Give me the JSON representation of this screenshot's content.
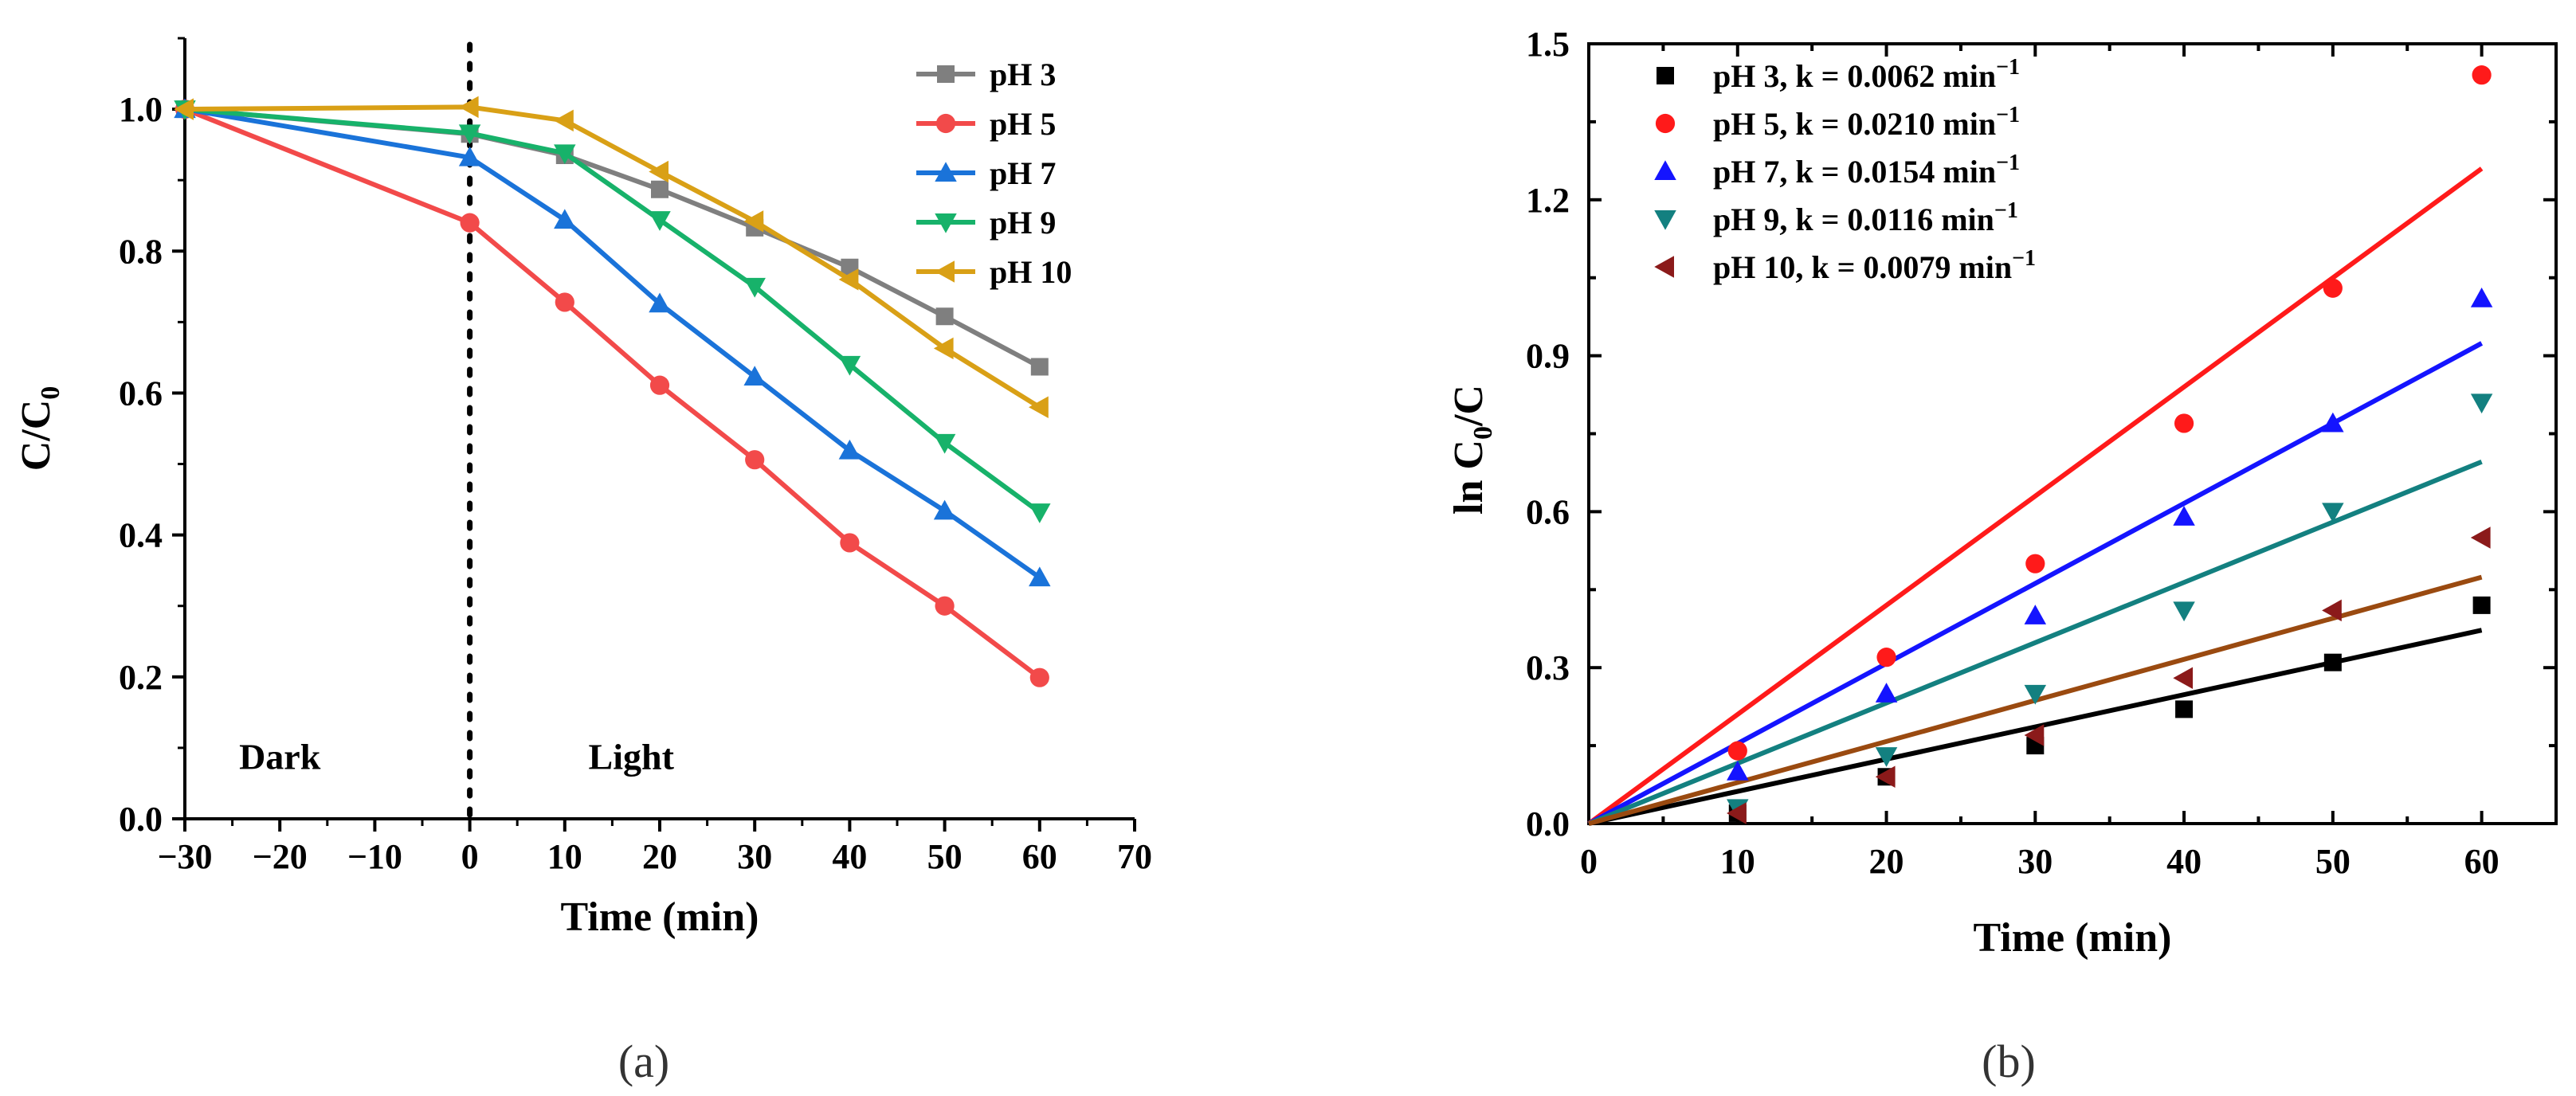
{
  "chart_data": [
    {
      "type": "line",
      "panel_label": "(a)",
      "xlabel": "Time (min)",
      "ylabel_main": "C/C",
      "ylabel_sub": "0",
      "xlim": [
        -30,
        70
      ],
      "ylim": [
        0,
        1.1
      ],
      "xticks": [
        -30,
        -20,
        -10,
        0,
        10,
        20,
        30,
        40,
        50,
        60,
        70
      ],
      "xtick_labels": [
        "−30",
        "−20",
        "−10",
        "0",
        "10",
        "20",
        "30",
        "40",
        "50",
        "60",
        "70"
      ],
      "yticks": [
        0.0,
        0.2,
        0.4,
        0.6,
        0.8,
        1.0
      ],
      "ytick_labels": [
        "0.0",
        "0.2",
        "0.4",
        "0.6",
        "0.8",
        "1.0"
      ],
      "annotations": {
        "dark": "Dark",
        "light": "Light"
      },
      "divider_x": 0,
      "x": [
        -30,
        0,
        10,
        20,
        30,
        40,
        50,
        60
      ],
      "series": [
        {
          "name": "pH 3",
          "marker": "square",
          "color": "#7f7f7f",
          "values": [
            1.0,
            0.965,
            0.935,
            0.887,
            0.833,
            0.777,
            0.708,
            0.637
          ]
        },
        {
          "name": "pH 5",
          "marker": "circle",
          "color": "#f24a4a",
          "values": [
            1.0,
            0.84,
            0.728,
            0.611,
            0.506,
            0.389,
            0.3,
            0.199
          ]
        },
        {
          "name": "pH 7",
          "marker": "triangle-up",
          "color": "#1a73d9",
          "values": [
            1.0,
            0.932,
            0.844,
            0.726,
            0.623,
            0.519,
            0.434,
            0.34
          ]
        },
        {
          "name": "pH 9",
          "marker": "triangle-down",
          "color": "#17b26a",
          "values": [
            1.0,
            0.966,
            0.938,
            0.844,
            0.75,
            0.64,
            0.53,
            0.432
          ]
        },
        {
          "name": "pH 10",
          "marker": "triangle-left",
          "color": "#d9a016",
          "values": [
            1.0,
            1.003,
            0.984,
            0.912,
            0.842,
            0.76,
            0.663,
            0.58
          ]
        }
      ]
    },
    {
      "type": "scatter",
      "panel_label": "(b)",
      "xlabel": "Time (min)",
      "ylabel_main": "ln C",
      "ylabel_sub": "0",
      "ylabel_end": "/C",
      "xlim": [
        0,
        65
      ],
      "ylim": [
        0,
        1.5
      ],
      "xticks": [
        0,
        10,
        20,
        30,
        40,
        50,
        60
      ],
      "xtick_labels": [
        "0",
        "10",
        "20",
        "30",
        "40",
        "50",
        "60"
      ],
      "yticks": [
        0.0,
        0.3,
        0.6,
        0.9,
        1.2,
        1.5
      ],
      "ytick_labels": [
        "0.0",
        "0.3",
        "0.6",
        "0.9",
        "1.2",
        "1.5"
      ],
      "x": [
        10,
        20,
        30,
        40,
        50,
        60
      ],
      "series": [
        {
          "name": "pH 3,  k =  0.0062 min",
          "sup": "−1",
          "marker": "square",
          "marker_color": "#000000",
          "line_color": "#000000",
          "k": 0.0062,
          "values": [
            0.02,
            0.09,
            0.15,
            0.22,
            0.31,
            0.42
          ]
        },
        {
          "name": "pH 5,  k =  0.0210 min",
          "sup": "−1",
          "marker": "circle",
          "marker_color": "#ff1a1a",
          "line_color": "#ff1a1a",
          "k": 0.021,
          "values": [
            0.14,
            0.32,
            0.5,
            0.77,
            1.03,
            1.44
          ]
        },
        {
          "name": "pH 7,  k =  0.0154 min",
          "sup": "−1",
          "marker": "triangle-up",
          "marker_color": "#1414ff",
          "line_color": "#1414ff",
          "k": 0.0154,
          "values": [
            0.1,
            0.25,
            0.4,
            0.59,
            0.77,
            1.01
          ]
        },
        {
          "name": "pH 9,  k =  0.0116 min",
          "sup": "−1",
          "marker": "triangle-down",
          "marker_color": "#138080",
          "line_color": "#138080",
          "k": 0.0116,
          "values": [
            0.03,
            0.13,
            0.25,
            0.41,
            0.6,
            0.81
          ]
        },
        {
          "name": "pH 10, k = 0.0079 min",
          "sup": "−1",
          "marker": "triangle-left",
          "marker_color": "#8b1a1a",
          "line_color": "#9a4a10",
          "k": 0.0079,
          "values": [
            0.02,
            0.09,
            0.17,
            0.28,
            0.41,
            0.55
          ]
        }
      ]
    }
  ]
}
